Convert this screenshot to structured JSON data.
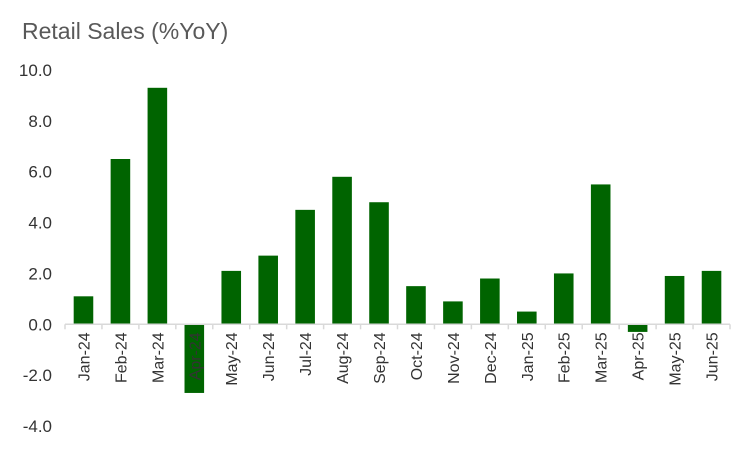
{
  "chart_data": {
    "type": "bar",
    "title": "Retail Sales (%YoY)",
    "xlabel": "",
    "ylabel": "",
    "categories": [
      "Jan-24",
      "Feb-24",
      "Mar-24",
      "Apr-24",
      "May-24",
      "Jun-24",
      "Jul-24",
      "Aug-24",
      "Sep-24",
      "Oct-24",
      "Nov-24",
      "Dec-24",
      "Jan-25",
      "Feb-25",
      "Mar-25",
      "Apr-25",
      "May-25",
      "Jun-25"
    ],
    "values": [
      1.1,
      6.5,
      9.3,
      -2.7,
      2.1,
      2.7,
      4.5,
      5.8,
      4.8,
      1.5,
      0.9,
      1.8,
      0.5,
      2.0,
      5.5,
      -0.3,
      1.9,
      2.1
    ],
    "ylim": [
      -4.0,
      10.0
    ],
    "yticks": [
      "10.0",
      "8.0",
      "6.0",
      "4.0",
      "2.0",
      "0.0",
      "-2.0",
      "-4.0"
    ],
    "grid": false,
    "bar_color": "#006400"
  }
}
